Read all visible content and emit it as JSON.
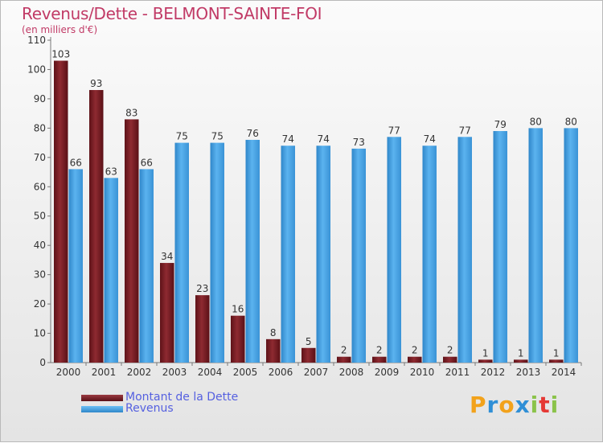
{
  "header": {
    "title": "Revenus/Dette - BELMONT-SAINTE-FOI",
    "subtitle": "(en milliers d'€)"
  },
  "legend": {
    "debt_label": "Montant de la Dette",
    "revenue_label": "Revenus"
  },
  "logo": {
    "text": "Proxiti",
    "letters": [
      "P",
      "r",
      "o",
      "x",
      "i",
      "t",
      "i"
    ],
    "colors": [
      "#f2a21b",
      "#2f8fd6",
      "#f2a21b",
      "#2f8fd6",
      "#8bc34a",
      "#e53935",
      "#8bc34a"
    ]
  },
  "colors": {
    "debt": "#7a1f25",
    "revenue": "#4aa3e3",
    "title": "#c13a66"
  },
  "chart_data": {
    "type": "bar",
    "title": "Revenus/Dette - BELMONT-SAINTE-FOI",
    "subtitle": "(en milliers d'€)",
    "categories": [
      "2000",
      "2001",
      "2002",
      "2003",
      "2004",
      "2005",
      "2006",
      "2007",
      "2008",
      "2009",
      "2010",
      "2011",
      "2012",
      "2013",
      "2014"
    ],
    "series": [
      {
        "name": "Montant de la Dette",
        "values": [
          103,
          93,
          83,
          34,
          23,
          16,
          8,
          5,
          2,
          2,
          2,
          2,
          1,
          1,
          1
        ]
      },
      {
        "name": "Revenus",
        "values": [
          66,
          63,
          66,
          75,
          75,
          76,
          74,
          74,
          73,
          77,
          74,
          77,
          79,
          80,
          80
        ]
      }
    ],
    "yticks": [
      0,
      10,
      20,
      30,
      40,
      50,
      60,
      70,
      80,
      90,
      100,
      110
    ],
    "ylim": [
      0,
      110
    ],
    "grid": false,
    "legend_position": "bottom-left"
  }
}
